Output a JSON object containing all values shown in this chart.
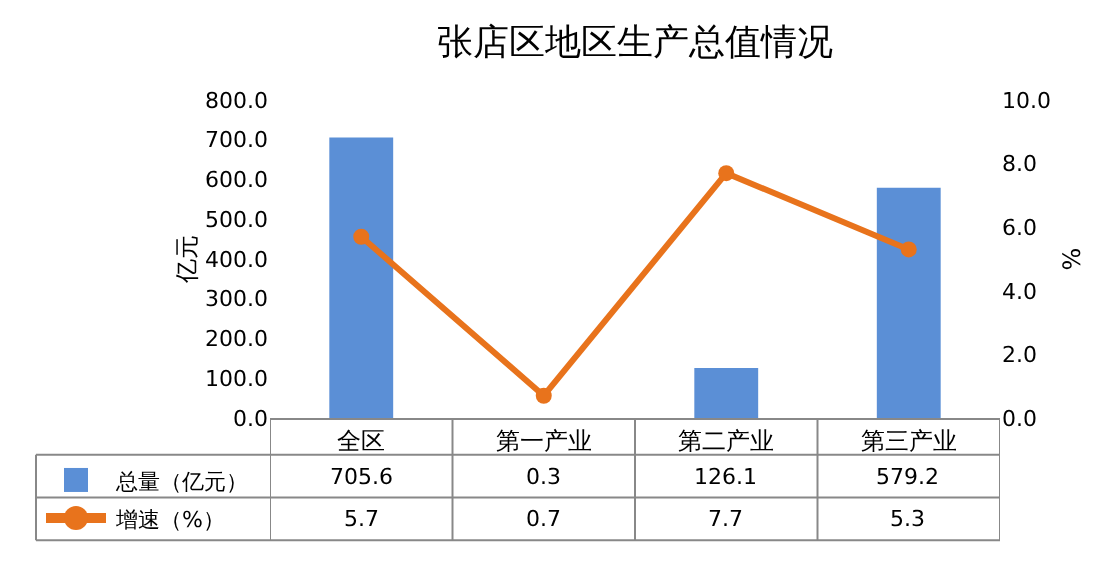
{
  "chart_data": {
    "type": "bar",
    "title": "张店区地区生产总值情况",
    "ylabel": "亿元",
    "y2label": "%",
    "categories": [
      "全区",
      "第一产业",
      "第二产业",
      "第三产业"
    ],
    "series": [
      {
        "name": "总量（亿元）",
        "color": "#5b8fd6",
        "values": [
          705.6,
          0.3,
          126.1,
          579.2
        ]
      },
      {
        "name": "增速（%）",
        "type": "line",
        "axis": "y2",
        "color": "#e8731c",
        "marker": "circle",
        "values": [
          5.7,
          0.7,
          7.7,
          5.3
        ]
      }
    ],
    "ylim": [
      0,
      800
    ],
    "yticks": [
      {
        "value": 0,
        "label": "0.0"
      },
      {
        "value": 100,
        "label": "100.0"
      },
      {
        "value": 200,
        "label": "200.0"
      },
      {
        "value": 300,
        "label": "300.0"
      },
      {
        "value": 400,
        "label": "400.0"
      },
      {
        "value": 500,
        "label": "500.0"
      },
      {
        "value": 600,
        "label": "600.0"
      },
      {
        "value": 700,
        "label": "700.0"
      },
      {
        "value": 800,
        "label": "800.0"
      }
    ],
    "y2lim": [
      0,
      10
    ],
    "y2ticks": [
      {
        "value": 0,
        "label": "0.0"
      },
      {
        "value": 2,
        "label": "2.0"
      },
      {
        "value": 4,
        "label": "4.0"
      },
      {
        "value": 6,
        "label": "6.0"
      },
      {
        "value": 8,
        "label": "8.0"
      },
      {
        "value": 10,
        "label": "10.0"
      }
    ],
    "data_labels": true,
    "legend": "bottom left",
    "grid": false
  }
}
